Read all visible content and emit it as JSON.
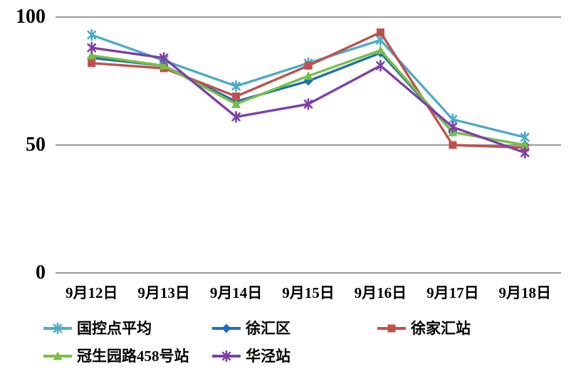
{
  "chart_data": {
    "type": "line",
    "categories": [
      "9月12日",
      "9月13日",
      "9月14日",
      "9月15日",
      "9月16日",
      "9月17日",
      "9月18日"
    ],
    "series": [
      {
        "name": "国控点平均",
        "color": "#4BACC6",
        "marker": "asterisk",
        "values": [
          93,
          83,
          73,
          82,
          91,
          60,
          53
        ]
      },
      {
        "name": "徐汇区",
        "color": "#1F6FB8",
        "marker": "diamond",
        "values": [
          84,
          81,
          67,
          75,
          86,
          55,
          50
        ]
      },
      {
        "name": "徐家汇站",
        "color": "#C0504D",
        "marker": "square",
        "values": [
          82,
          80,
          69,
          81,
          94,
          50,
          49
        ]
      },
      {
        "name": "冠生园路458号站",
        "color": "#77C044",
        "marker": "triangle",
        "values": [
          85,
          81,
          66,
          77,
          87,
          55,
          50
        ]
      },
      {
        "name": "华泾站",
        "color": "#7E3FA8",
        "marker": "asterisk",
        "values": [
          88,
          84,
          61,
          66,
          81,
          57,
          47
        ]
      }
    ],
    "title": "",
    "xlabel": "",
    "ylabel": "",
    "ylim": [
      0,
      100
    ],
    "yticks": [
      0,
      50,
      100
    ],
    "ytick_labels": [
      "0",
      "50",
      "100"
    ],
    "grid": "horizontal-only",
    "gridline_color": "#9a9a9a",
    "text_color": "#000000",
    "legend_position": "bottom-left-two-rows"
  }
}
